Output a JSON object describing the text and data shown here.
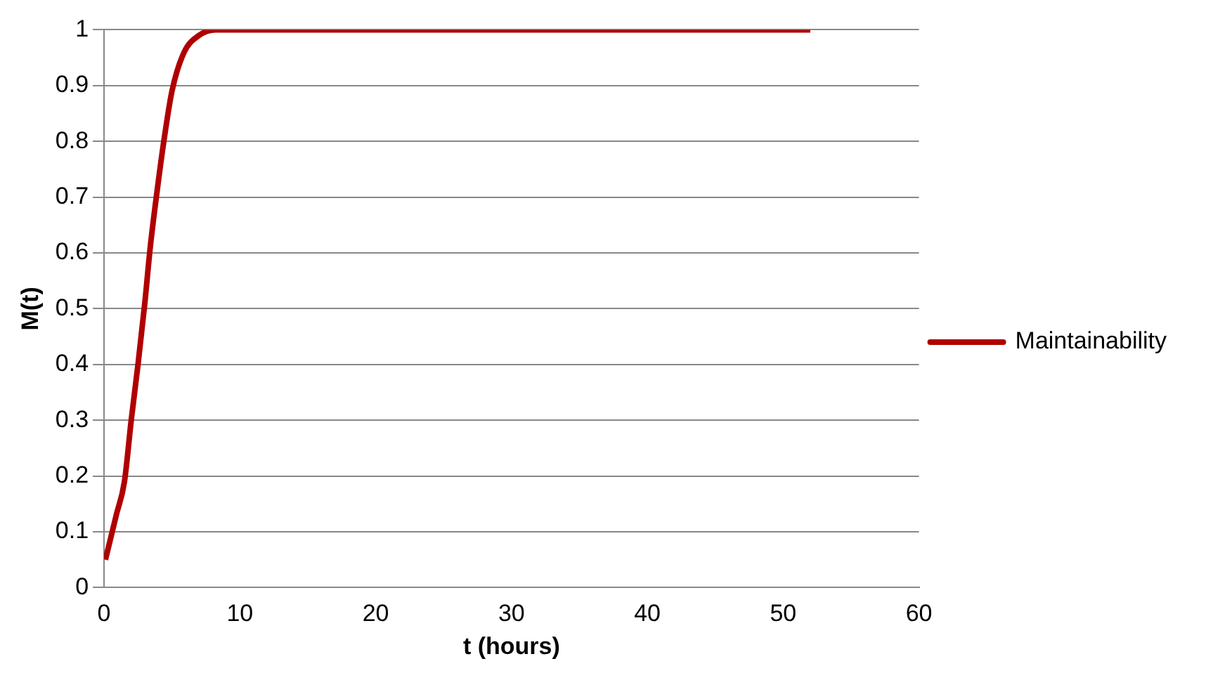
{
  "chart_data": {
    "type": "line",
    "xlabel": "t (hours)",
    "ylabel": "M(t)",
    "series": [
      {
        "name": "Maintainability",
        "color": "#b00000",
        "x": [
          0.1,
          0.9,
          1.5,
          2.0,
          2.5,
          3.0,
          3.4,
          3.9,
          4.4,
          5.0,
          5.9,
          7.0,
          8.2,
          10,
          20,
          30,
          40,
          52
        ],
        "values": [
          0.05,
          0.13,
          0.19,
          0.3,
          0.4,
          0.51,
          0.61,
          0.71,
          0.8,
          0.89,
          0.96,
          0.99,
          1.0,
          1.0,
          1.0,
          1.0,
          1.0,
          1.0
        ]
      }
    ],
    "xlim": [
      0,
      60
    ],
    "xticks": [
      0,
      10,
      20,
      30,
      40,
      50,
      60
    ],
    "ylim": [
      0,
      1
    ],
    "yticks": [
      0,
      0.1,
      0.2,
      0.3,
      0.4,
      0.5,
      0.6,
      0.7,
      0.8,
      0.9,
      1
    ],
    "grid": "y",
    "legend": "right",
    "marker": "none",
    "line_style": "solid"
  }
}
